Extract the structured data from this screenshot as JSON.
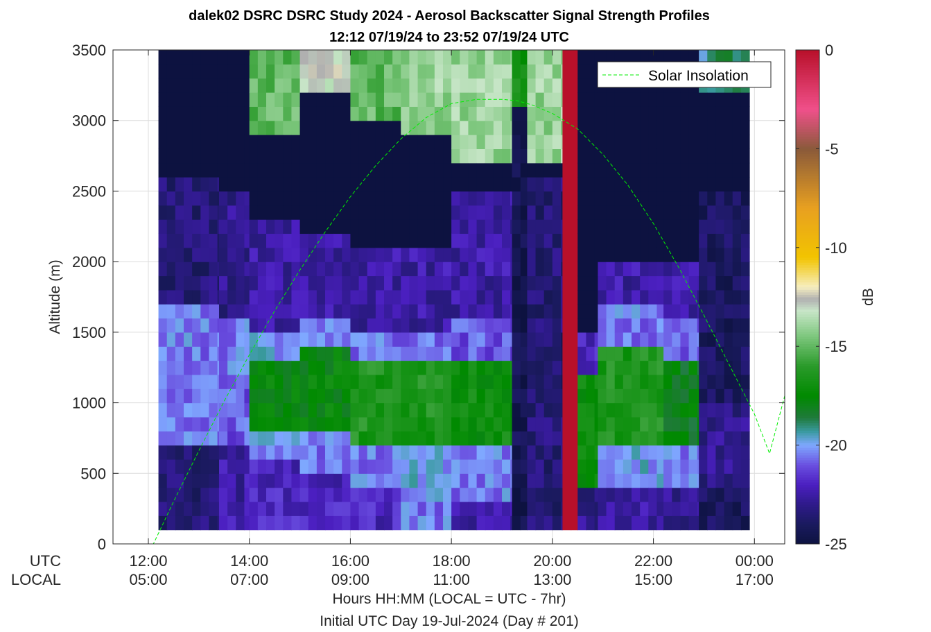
{
  "chart_data": {
    "type": "heatmap",
    "title": "dalek02 DSRC DSRC Study 2024 - Aerosol Backscatter Signal Strength Profiles",
    "subtitle": "12:12 07/19/24 to 23:52 07/19/24  UTC",
    "ylabel": "Altitude (m)",
    "ylim": [
      0,
      3500
    ],
    "yticks": [
      "0",
      "500",
      "1000",
      "1500",
      "2000",
      "2500",
      "3000",
      "3500"
    ],
    "ytick_values": [
      0,
      500,
      1000,
      1500,
      2000,
      2500,
      3000,
      3500
    ],
    "xlim_hours": [
      11.3,
      24.6
    ],
    "xtick_hours": [
      12,
      14,
      16,
      18,
      20,
      22,
      24
    ],
    "xrow_labels": [
      "UTC",
      "LOCAL"
    ],
    "xticks_utc": [
      "12:00",
      "14:00",
      "16:00",
      "18:00",
      "20:00",
      "22:00",
      "00:00"
    ],
    "xticks_local": [
      "05:00",
      "07:00",
      "09:00",
      "11:00",
      "13:00",
      "15:00",
      "17:00"
    ],
    "xlabel": "Hours HH:MM  (LOCAL = UTC - 7hr)",
    "xlabel2": "Initial UTC Day 19-Jul-2024 (Day # 201)",
    "grid": true,
    "legend": {
      "position": "top-right",
      "entries": [
        {
          "name": "Solar Insolation",
          "color": "#00ee00",
          "style": "dashed"
        }
      ]
    },
    "colorbar": {
      "label": "dB",
      "clim": [
        -25,
        0
      ],
      "ticks": [
        "0",
        "-5",
        "-10",
        "-15",
        "-20",
        "-25"
      ],
      "tick_values": [
        0,
        -5,
        -10,
        -15,
        -20,
        -25
      ],
      "colors": [
        {
          "db": -25,
          "color": "#0d1240"
        },
        {
          "db": -24,
          "color": "#1a1a5e"
        },
        {
          "db": -23,
          "color": "#2e1a8a"
        },
        {
          "db": -22,
          "color": "#4b1fc0"
        },
        {
          "db": -21,
          "color": "#6a4fe0"
        },
        {
          "db": -20,
          "color": "#7fa8ff"
        },
        {
          "db": -19.3,
          "color": "#3a9aa0"
        },
        {
          "db": -18.6,
          "color": "#1f7a3a"
        },
        {
          "db": -17.5,
          "color": "#008a00"
        },
        {
          "db": -16,
          "color": "#2a9a2a"
        },
        {
          "db": -14.5,
          "color": "#7cc67c"
        },
        {
          "db": -13.2,
          "color": "#c8e6c8"
        },
        {
          "db": -12.6,
          "color": "#b0b0b0"
        },
        {
          "db": -12,
          "color": "#f6eec0"
        },
        {
          "db": -10.5,
          "color": "#f2c400"
        },
        {
          "db": -8,
          "color": "#e8a020"
        },
        {
          "db": -5,
          "color": "#8a5a3a"
        },
        {
          "db": -3,
          "color": "#f0508a"
        },
        {
          "db": 0,
          "color": "#b8102a"
        }
      ]
    },
    "profiles": {
      "time_start_hour": 12.2,
      "time_step_hour": 0.1667,
      "alt_start_m": 100,
      "alt_step_m": 100,
      "fill_db": -25,
      "columns": [
        {
          "t0": 12.2,
          "t1": 13.4,
          "layers": [
            [
              700,
              1700,
              -20.5
            ],
            [
              1700,
              2600,
              -23.5
            ],
            [
              100,
              700,
              -23.5
            ]
          ]
        },
        {
          "t0": 13.4,
          "t1": 14.0,
          "layers": [
            [
              1100,
              1600,
              -20.5
            ],
            [
              700,
              1100,
              -21
            ],
            [
              1600,
              2500,
              -23
            ],
            [
              100,
              700,
              -22.5
            ]
          ]
        },
        {
          "t0": 14.0,
          "t1": 15.0,
          "layers": [
            [
              800,
              1300,
              -17.5
            ],
            [
              600,
              800,
              -20
            ],
            [
              1300,
              1500,
              -20
            ],
            [
              1500,
              2300,
              -22.5
            ],
            [
              100,
              600,
              -22
            ],
            [
              2900,
              3500,
              -15
            ]
          ]
        },
        {
          "t0": 15.0,
          "t1": 16.0,
          "layers": [
            [
              850,
              1400,
              -17.5
            ],
            [
              500,
              850,
              -20.5
            ],
            [
              1400,
              1600,
              -20.5
            ],
            [
              1600,
              2200,
              -22.5
            ],
            [
              100,
              500,
              -22
            ],
            [
              3200,
              3500,
              -13
            ]
          ]
        },
        {
          "t0": 16.0,
          "t1": 17.0,
          "layers": [
            [
              750,
              1350,
              -16.5
            ],
            [
              400,
              750,
              -20.5
            ],
            [
              1350,
              1550,
              -20.5
            ],
            [
              1550,
              2100,
              -22.5
            ],
            [
              100,
              400,
              -22
            ],
            [
              3000,
              3500,
              -15
            ]
          ]
        },
        {
          "t0": 17.0,
          "t1": 18.0,
          "layers": [
            [
              700,
              1300,
              -16.5
            ],
            [
              300,
              700,
              -20
            ],
            [
              1300,
              1550,
              -20.5
            ],
            [
              1550,
              2100,
              -22.5
            ],
            [
              100,
              300,
              -20.5
            ],
            [
              2900,
              3500,
              -14
            ]
          ]
        },
        {
          "t0": 18.0,
          "t1": 19.2,
          "layers": [
            [
              700,
              1350,
              -17
            ],
            [
              300,
              700,
              -20.5
            ],
            [
              1350,
              1600,
              -21
            ],
            [
              1600,
              2500,
              -22.5
            ],
            [
              100,
              300,
              -22.5
            ],
            [
              2700,
              3500,
              -14
            ]
          ]
        },
        {
          "t0": 19.2,
          "t1": 19.5,
          "layers": [
            [
              100,
              3500,
              -24.5
            ],
            [
              3100,
              3500,
              -17
            ]
          ]
        },
        {
          "t0": 19.5,
          "t1": 20.2,
          "layers": [
            [
              100,
              2600,
              -23.5
            ],
            [
              2700,
              3500,
              -14
            ]
          ]
        },
        {
          "t0": 20.2,
          "t1": 20.5,
          "layers": [
            [
              100,
              3500,
              0
            ]
          ]
        },
        {
          "t0": 20.5,
          "t1": 20.9,
          "layers": [
            [
              400,
              1200,
              -17
            ],
            [
              1200,
              1500,
              -22
            ],
            [
              100,
              400,
              -23
            ]
          ]
        },
        {
          "t0": 20.9,
          "t1": 22.2,
          "layers": [
            [
              700,
              1400,
              -16.5
            ],
            [
              400,
              700,
              -20
            ],
            [
              1400,
              1700,
              -20.5
            ],
            [
              1700,
              2000,
              -22.5
            ],
            [
              100,
              400,
              -22.5
            ]
          ]
        },
        {
          "t0": 22.2,
          "t1": 22.9,
          "layers": [
            [
              700,
              1300,
              -18
            ],
            [
              400,
              700,
              -20.5
            ],
            [
              1300,
              1600,
              -21
            ],
            [
              1600,
              2000,
              -22.5
            ],
            [
              100,
              400,
              -23
            ]
          ]
        },
        {
          "t0": 22.9,
          "t1": 23.9,
          "layers": [
            [
              400,
              1000,
              -23
            ],
            [
              1000,
              2500,
              -24
            ],
            [
              100,
              400,
              -24
            ],
            [
              3200,
              3500,
              -19
            ]
          ]
        }
      ]
    },
    "solar_insolation": {
      "hours": [
        11.3,
        11.9,
        12.1,
        12.5,
        13.0,
        13.5,
        14.0,
        14.5,
        15.0,
        15.5,
        16.0,
        16.5,
        17.0,
        17.5,
        18.0,
        18.5,
        19.0,
        19.3,
        19.6,
        20.0,
        20.5,
        21.0,
        21.5,
        22.0,
        22.5,
        23.0,
        23.5,
        24.0,
        24.3,
        24.6
      ],
      "altitude_m": [
        0,
        0,
        0,
        300,
        660,
        1010,
        1340,
        1650,
        1940,
        2210,
        2460,
        2680,
        2870,
        3020,
        3120,
        3150,
        3150,
        3140,
        3110,
        3050,
        2940,
        2760,
        2540,
        2270,
        1960,
        1620,
        1270,
        920,
        640,
        1050
      ]
    }
  }
}
